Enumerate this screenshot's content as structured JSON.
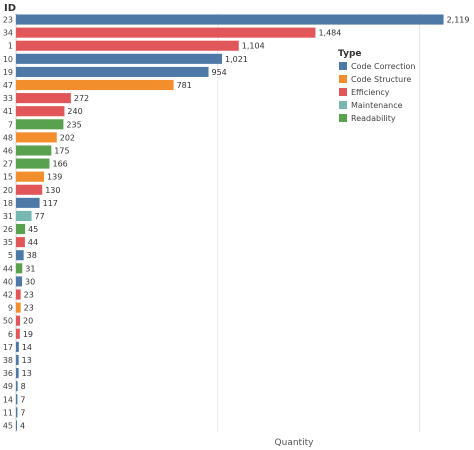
{
  "chart_data": {
    "type": "bar",
    "orientation": "horizontal",
    "ylabel": "ID",
    "xlabel": "Quantity",
    "xlim": [
      0,
      2250
    ],
    "legend_title": "Type",
    "legend_position": "top-right",
    "grid": false,
    "types": [
      {
        "name": "Code Correction",
        "color": "#4e79a7"
      },
      {
        "name": "Code Structure",
        "color": "#f28e2b"
      },
      {
        "name": "Efficiency",
        "color": "#e15759"
      },
      {
        "name": "Maintenance",
        "color": "#76b7b2"
      },
      {
        "name": "Readability",
        "color": "#59a14f"
      }
    ],
    "bars": [
      {
        "id": "23",
        "value": 2119,
        "label": "2,119",
        "type": "Code Correction"
      },
      {
        "id": "34",
        "value": 1484,
        "label": "1,484",
        "type": "Efficiency"
      },
      {
        "id": "1",
        "value": 1104,
        "label": "1,104",
        "type": "Efficiency"
      },
      {
        "id": "10",
        "value": 1021,
        "label": "1,021",
        "type": "Code Correction"
      },
      {
        "id": "19",
        "value": 954,
        "label": "954",
        "type": "Code Correction"
      },
      {
        "id": "47",
        "value": 781,
        "label": "781",
        "type": "Code Structure"
      },
      {
        "id": "33",
        "value": 272,
        "label": "272",
        "type": "Efficiency"
      },
      {
        "id": "41",
        "value": 240,
        "label": "240",
        "type": "Efficiency"
      },
      {
        "id": "7",
        "value": 235,
        "label": "235",
        "type": "Readability"
      },
      {
        "id": "48",
        "value": 202,
        "label": "202",
        "type": "Code Structure"
      },
      {
        "id": "46",
        "value": 175,
        "label": "175",
        "type": "Readability"
      },
      {
        "id": "27",
        "value": 166,
        "label": "166",
        "type": "Readability"
      },
      {
        "id": "15",
        "value": 139,
        "label": "139",
        "type": "Code Structure"
      },
      {
        "id": "20",
        "value": 130,
        "label": "130",
        "type": "Efficiency"
      },
      {
        "id": "18",
        "value": 117,
        "label": "117",
        "type": "Code Correction"
      },
      {
        "id": "31",
        "value": 77,
        "label": "77",
        "type": "Maintenance"
      },
      {
        "id": "26",
        "value": 45,
        "label": "45",
        "type": "Readability"
      },
      {
        "id": "35",
        "value": 44,
        "label": "44",
        "type": "Efficiency"
      },
      {
        "id": "5",
        "value": 38,
        "label": "38",
        "type": "Code Correction"
      },
      {
        "id": "44",
        "value": 31,
        "label": "31",
        "type": "Readability"
      },
      {
        "id": "40",
        "value": 30,
        "label": "30",
        "type": "Code Correction"
      },
      {
        "id": "42",
        "value": 23,
        "label": "23",
        "type": "Efficiency"
      },
      {
        "id": "9",
        "value": 23,
        "label": "23",
        "type": "Code Structure"
      },
      {
        "id": "50",
        "value": 20,
        "label": "20",
        "type": "Efficiency"
      },
      {
        "id": "6",
        "value": 19,
        "label": "19",
        "type": "Efficiency"
      },
      {
        "id": "17",
        "value": 14,
        "label": "14",
        "type": "Code Correction"
      },
      {
        "id": "38",
        "value": 13,
        "label": "13",
        "type": "Code Correction"
      },
      {
        "id": "36",
        "value": 13,
        "label": "13",
        "type": "Code Correction"
      },
      {
        "id": "49",
        "value": 8,
        "label": "8",
        "type": "Code Correction"
      },
      {
        "id": "14",
        "value": 7,
        "label": "7",
        "type": "Code Correction"
      },
      {
        "id": "11",
        "value": 7,
        "label": "7",
        "type": "Code Correction"
      },
      {
        "id": "45",
        "value": 4,
        "label": "4",
        "type": "Code Correction"
      }
    ]
  }
}
